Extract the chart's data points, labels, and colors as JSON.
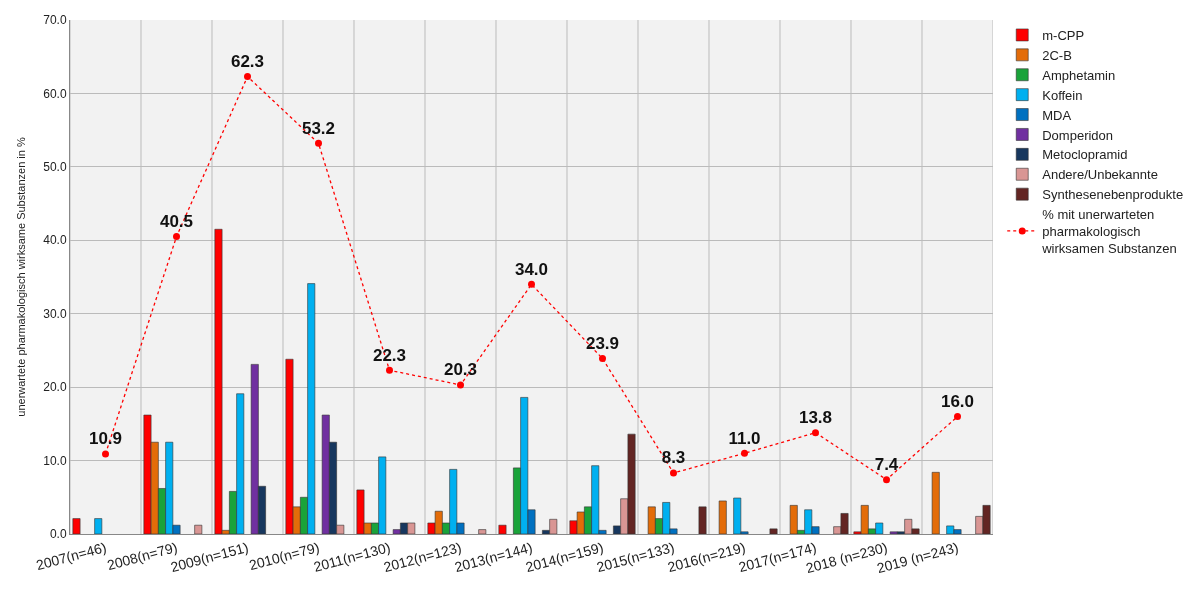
{
  "chart_data": {
    "type": "bar",
    "ylabel": "unerwartete pharmakologisch wirksame Substanzen in %",
    "categories": [
      "2007(n=46)",
      "2008(n=79)",
      "2009(n=151)",
      "2010(n=79)",
      "2011(n=130)",
      "2012(n=123)",
      "2013(n=144)",
      "2014(n=159)",
      "2015(n=133)",
      "2016(n=219)",
      "2017(n=174)",
      "2018 (n=230)",
      "2019 (n=243)"
    ],
    "ylim": [
      0,
      70
    ],
    "yticks": [
      {
        "value": 0,
        "label": "0.0"
      },
      {
        "value": 10,
        "label": "10.0"
      },
      {
        "value": 20,
        "label": "20.0"
      },
      {
        "value": 30,
        "label": "30.0"
      },
      {
        "value": 40,
        "label": "40.0"
      },
      {
        "value": 50,
        "label": "50.0"
      },
      {
        "value": 60,
        "label": "60.0"
      },
      {
        "value": 70,
        "label": "70.0"
      }
    ],
    "grid": true,
    "legend": "right",
    "series": [
      {
        "name": "m-CPP",
        "color": "#ff0000",
        "values": [
          2.1,
          16.2,
          41.5,
          23.8,
          6.0,
          1.5,
          1.2,
          1.8,
          null,
          null,
          null,
          0.3,
          null
        ]
      },
      {
        "name": "2C-B",
        "color": "#e36c09",
        "values": [
          null,
          12.5,
          0.5,
          3.7,
          1.5,
          3.1,
          null,
          3.0,
          3.7,
          4.5,
          3.9,
          3.9,
          8.4
        ]
      },
      {
        "name": "Amphetamin",
        "color": "#1aa33a",
        "values": [
          null,
          6.2,
          5.8,
          5.0,
          1.5,
          1.5,
          9.0,
          3.7,
          2.1,
          null,
          0.5,
          0.7,
          null
        ]
      },
      {
        "name": "Koffein",
        "color": "#00b0f0",
        "values": [
          2.1,
          12.5,
          19.1,
          34.1,
          10.5,
          8.8,
          18.6,
          9.3,
          4.3,
          4.9,
          3.3,
          1.5,
          1.1
        ]
      },
      {
        "name": "MDA",
        "color": "#0070c0",
        "values": [
          null,
          1.2,
          null,
          null,
          null,
          1.5,
          3.3,
          0.5,
          0.7,
          0.3,
          1.0,
          null,
          0.6
        ]
      },
      {
        "name": "Domperidon",
        "color": "#7030a0",
        "values": [
          null,
          null,
          23.1,
          16.2,
          0.6,
          null,
          null,
          null,
          null,
          null,
          null,
          0.3,
          null
        ]
      },
      {
        "name": "Metoclopramid",
        "color": "#17375e",
        "values": [
          null,
          null,
          6.5,
          12.5,
          1.5,
          null,
          0.5,
          1.1,
          null,
          null,
          null,
          0.3,
          null
        ]
      },
      {
        "name": "Andere/Unbekannte",
        "color": "#d99694",
        "values": [
          null,
          1.2,
          null,
          1.2,
          1.5,
          0.6,
          2.0,
          4.8,
          null,
          null,
          1.0,
          2.0,
          2.4
        ]
      },
      {
        "name": "Synthesenebenprodukte",
        "color": "#632523",
        "values": [
          null,
          null,
          null,
          null,
          null,
          null,
          null,
          13.6,
          3.7,
          0.7,
          2.8,
          0.7,
          3.9
        ]
      },
      {
        "name": "% mit unerwarteten pharmakologisch wirksamen Substanzen",
        "type": "line",
        "color": "#ff0000",
        "marker": "circle",
        "line_style": "dotted",
        "value_labels": [
          "10.9",
          "40.5",
          "62.3",
          "53.2",
          "22.3",
          "20.3",
          "34.0",
          "23.9",
          "8.3",
          "11.0",
          "13.8",
          "7.4",
          "16.0"
        ],
        "values": [
          10.9,
          40.5,
          62.3,
          53.2,
          22.3,
          20.3,
          34.0,
          23.9,
          8.3,
          11.0,
          13.8,
          7.4,
          16.0
        ]
      }
    ]
  }
}
